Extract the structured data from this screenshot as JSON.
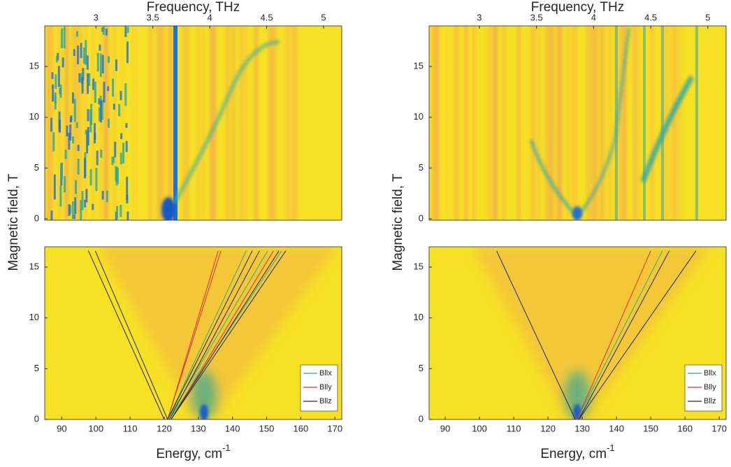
{
  "chart_data": [
    {
      "type": "heatmap-lines",
      "x2label": "Frequency, THz",
      "ylabel": "Magnetic field, T",
      "xlabel": "Energy, cm",
      "xlabel_sup": "-1",
      "xlim": [
        85,
        172
      ],
      "xticks": [
        90,
        100,
        110,
        120,
        130,
        140,
        150,
        160,
        170
      ],
      "x2lim": [
        2.55,
        5.16
      ],
      "x2ticks": [
        3,
        3.5,
        4,
        4.5,
        5
      ],
      "ylim_top": [
        0,
        19
      ],
      "yticks_top": [
        0,
        5,
        10,
        15
      ],
      "ylim": [
        0,
        17
      ],
      "yticks": [
        0,
        5,
        10,
        15
      ],
      "series": [
        {
          "name": "Bllx",
          "color": "#22b573",
          "lines": [
            {
              "x": [
                121,
                144
              ],
              "y": [
                0,
                16.6
              ]
            },
            {
              "x": [
                121,
                150.3
              ],
              "y": [
                0,
                16.6
              ]
            },
            {
              "x": [
                121.5,
                154.4
              ],
              "y": [
                0,
                16.6
              ]
            }
          ]
        },
        {
          "name": "Blly",
          "color": "#e0302a",
          "lines": [
            {
              "x": [
                121,
                135.8
              ],
              "y": [
                0,
                16.6
              ]
            },
            {
              "x": [
                121,
                136.6
              ],
              "y": [
                0,
                16.6
              ]
            },
            {
              "x": [
                122,
                152
              ],
              "y": [
                0,
                16.6
              ]
            }
          ]
        },
        {
          "name": "Bllz",
          "color": "#25254a",
          "lines": [
            {
              "x": [
                120,
                97.8
              ],
              "y": [
                0,
                16.6
              ]
            },
            {
              "x": [
                121,
                99.8
              ],
              "y": [
                0,
                16.6
              ]
            },
            {
              "x": [
                121,
                145.8
              ],
              "y": [
                0,
                16.6
              ]
            },
            {
              "x": [
                121.5,
                147.9
              ],
              "y": [
                0,
                16.6
              ]
            },
            {
              "x": [
                122,
                153.6
              ],
              "y": [
                0,
                16.6
              ]
            },
            {
              "x": [
                122,
                155.6
              ],
              "y": [
                0,
                16.6
              ]
            }
          ]
        }
      ]
    },
    {
      "type": "heatmap-lines",
      "x2label": "Frequency, THz",
      "ylabel": "Magnetic field, T",
      "xlabel": "Energy, cm",
      "xlabel_sup": "-1",
      "xlim": [
        85.3,
        172
      ],
      "xticks": [
        90,
        100,
        110,
        120,
        130,
        140,
        150,
        160,
        170
      ],
      "x2lim": [
        2.56,
        5.16
      ],
      "x2ticks": [
        3,
        3.5,
        4,
        4.5,
        5
      ],
      "ylim_top": [
        0,
        19
      ],
      "yticks_top": [
        0,
        5,
        10,
        15
      ],
      "ylim": [
        0,
        17
      ],
      "yticks": [
        0,
        5,
        10,
        15
      ],
      "series": [
        {
          "name": "Bllx",
          "color": "#22b573",
          "lines": [
            {
              "x": [
                128.5,
                153.4
              ],
              "y": [
                0,
                16.6
              ]
            }
          ]
        },
        {
          "name": "Blly",
          "color": "#e0302a",
          "lines": [
            {
              "x": [
                128.5,
                150
              ],
              "y": [
                0,
                16.6
              ]
            }
          ]
        },
        {
          "name": "Bllz",
          "color": "#25254a",
          "lines": [
            {
              "x": [
                128,
                105
              ],
              "y": [
                0,
                16.6
              ]
            },
            {
              "x": [
                129,
                155.4
              ],
              "y": [
                0,
                16.6
              ]
            },
            {
              "x": [
                129,
                163.2
              ],
              "y": [
                0,
                16.6
              ]
            }
          ]
        }
      ]
    }
  ]
}
